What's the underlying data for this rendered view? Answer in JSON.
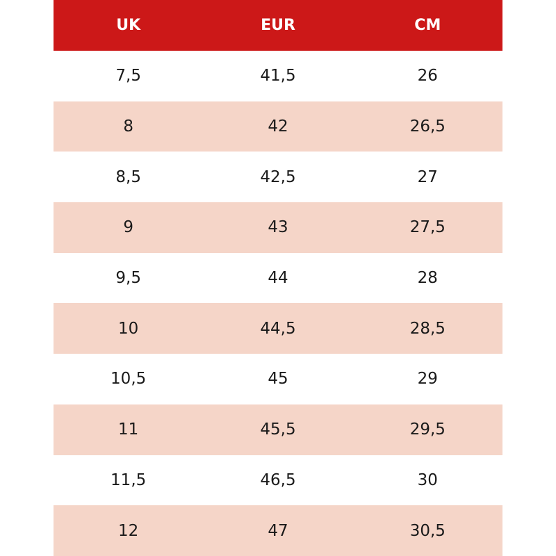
{
  "table": {
    "header": [
      "UK",
      "EUR",
      "CM"
    ],
    "rows": [
      [
        "7,5",
        "41,5",
        "26"
      ],
      [
        "8",
        "42",
        "26,5"
      ],
      [
        "8,5",
        "42,5",
        "27"
      ],
      [
        "9",
        "43",
        "27,5"
      ],
      [
        "9,5",
        "44",
        "28"
      ],
      [
        "10",
        "44,5",
        "28,5"
      ],
      [
        "10,5",
        "45",
        "29"
      ],
      [
        "11",
        "45,5",
        "29,5"
      ],
      [
        "11,5",
        "46,5",
        "30"
      ],
      [
        "12",
        "47",
        "30,5"
      ]
    ]
  }
}
